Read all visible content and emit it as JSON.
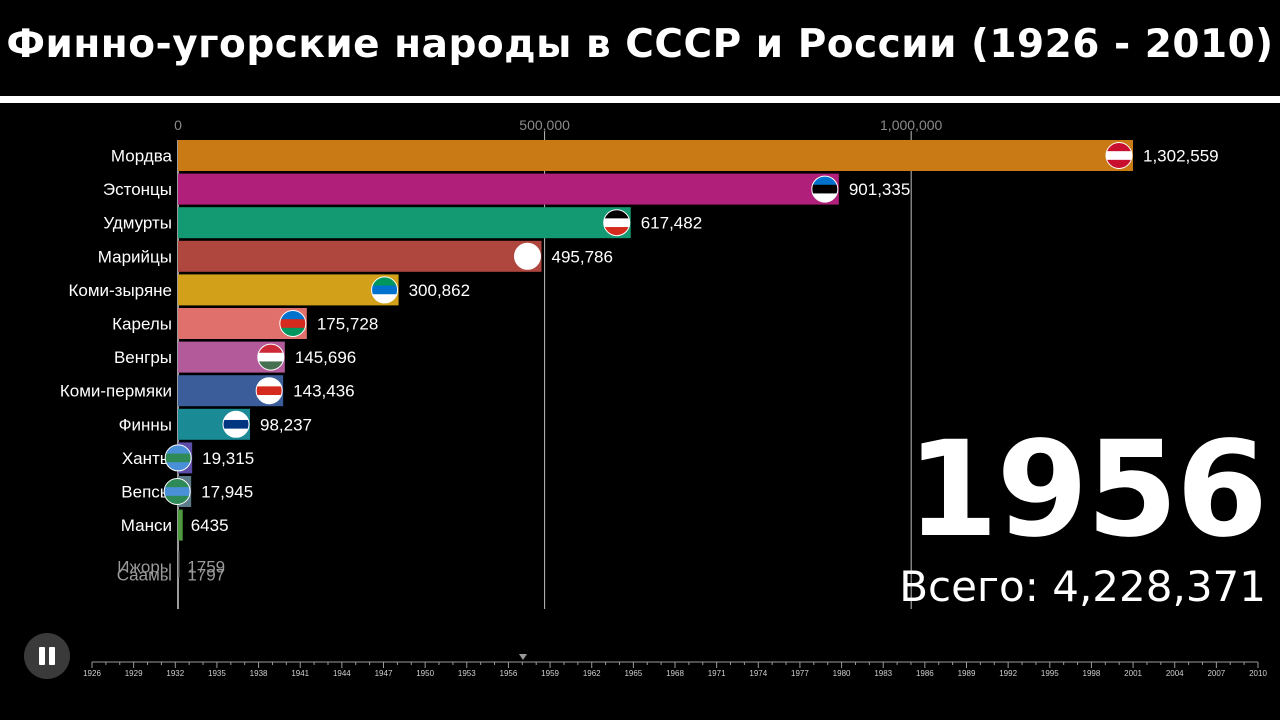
{
  "title": "Финно-угорские народы в СССР и России  (1926 - 2010)",
  "year": "1956",
  "total_label": "Всего:",
  "total_value": "4,228,371",
  "controls": {
    "pause_icon": "pause-icon"
  },
  "chart_data": {
    "type": "bar",
    "orientation": "horizontal",
    "xlim": [
      0,
      1350000
    ],
    "x_ticks": [
      0,
      500000,
      1000000
    ],
    "x_tick_labels": [
      "0",
      "500,000",
      "1,000,000"
    ],
    "grid": true,
    "categories": [
      "Мордва",
      "Эстонцы",
      "Удмурты",
      "Марийцы",
      "Коми-зыряне",
      "Карелы",
      "Венгры",
      "Коми-пермяки",
      "Финны",
      "Ханты",
      "Вепсы",
      "Манси",
      "Ижоры",
      "Саамы"
    ],
    "values": [
      1302559,
      901335,
      617482,
      495786,
      300862,
      175728,
      145696,
      143436,
      98237,
      19315,
      17945,
      6435,
      1759,
      1797
    ],
    "value_labels": [
      "1,302,559",
      "901,335",
      "617,482",
      "495,786",
      "300,862",
      "175,728",
      "145,696",
      "143,436",
      "98,237",
      "19,315",
      "17,945",
      "6435",
      "1759",
      "1797"
    ],
    "colors": [
      "#c97a14",
      "#b0207a",
      "#139a72",
      "#b0473e",
      "#d3a01a",
      "#e0706c",
      "#b35a9b",
      "#3b5e9a",
      "#1a8a94",
      "#5c4ea8",
      "#5c7c8c",
      "#4e9a3e",
      "#6b6b6b",
      "#6b6b6b"
    ],
    "flags": [
      "mordovia-flag-icon",
      "estonia-flag-icon",
      "udmurtia-flag-icon",
      "mari-el-flag-icon",
      "komi-flag-icon",
      "karelia-flag-icon",
      "hungary-flag-icon",
      "komi-permyak-flag-icon",
      "finland-flag-icon",
      "khanty-flag-icon",
      "veps-flag-icon",
      "",
      "",
      ""
    ]
  },
  "timeline": {
    "years": [
      "1926",
      "1929",
      "1932",
      "1935",
      "1938",
      "1941",
      "1944",
      "1947",
      "1950",
      "1953",
      "1956",
      "1959",
      "1962",
      "1965",
      "1968",
      "1971",
      "1974",
      "1977",
      "1980",
      "1983",
      "1986",
      "1989",
      "1992",
      "1995",
      "1998",
      "2001",
      "2004",
      "2007",
      "2010"
    ],
    "current": "1956"
  }
}
